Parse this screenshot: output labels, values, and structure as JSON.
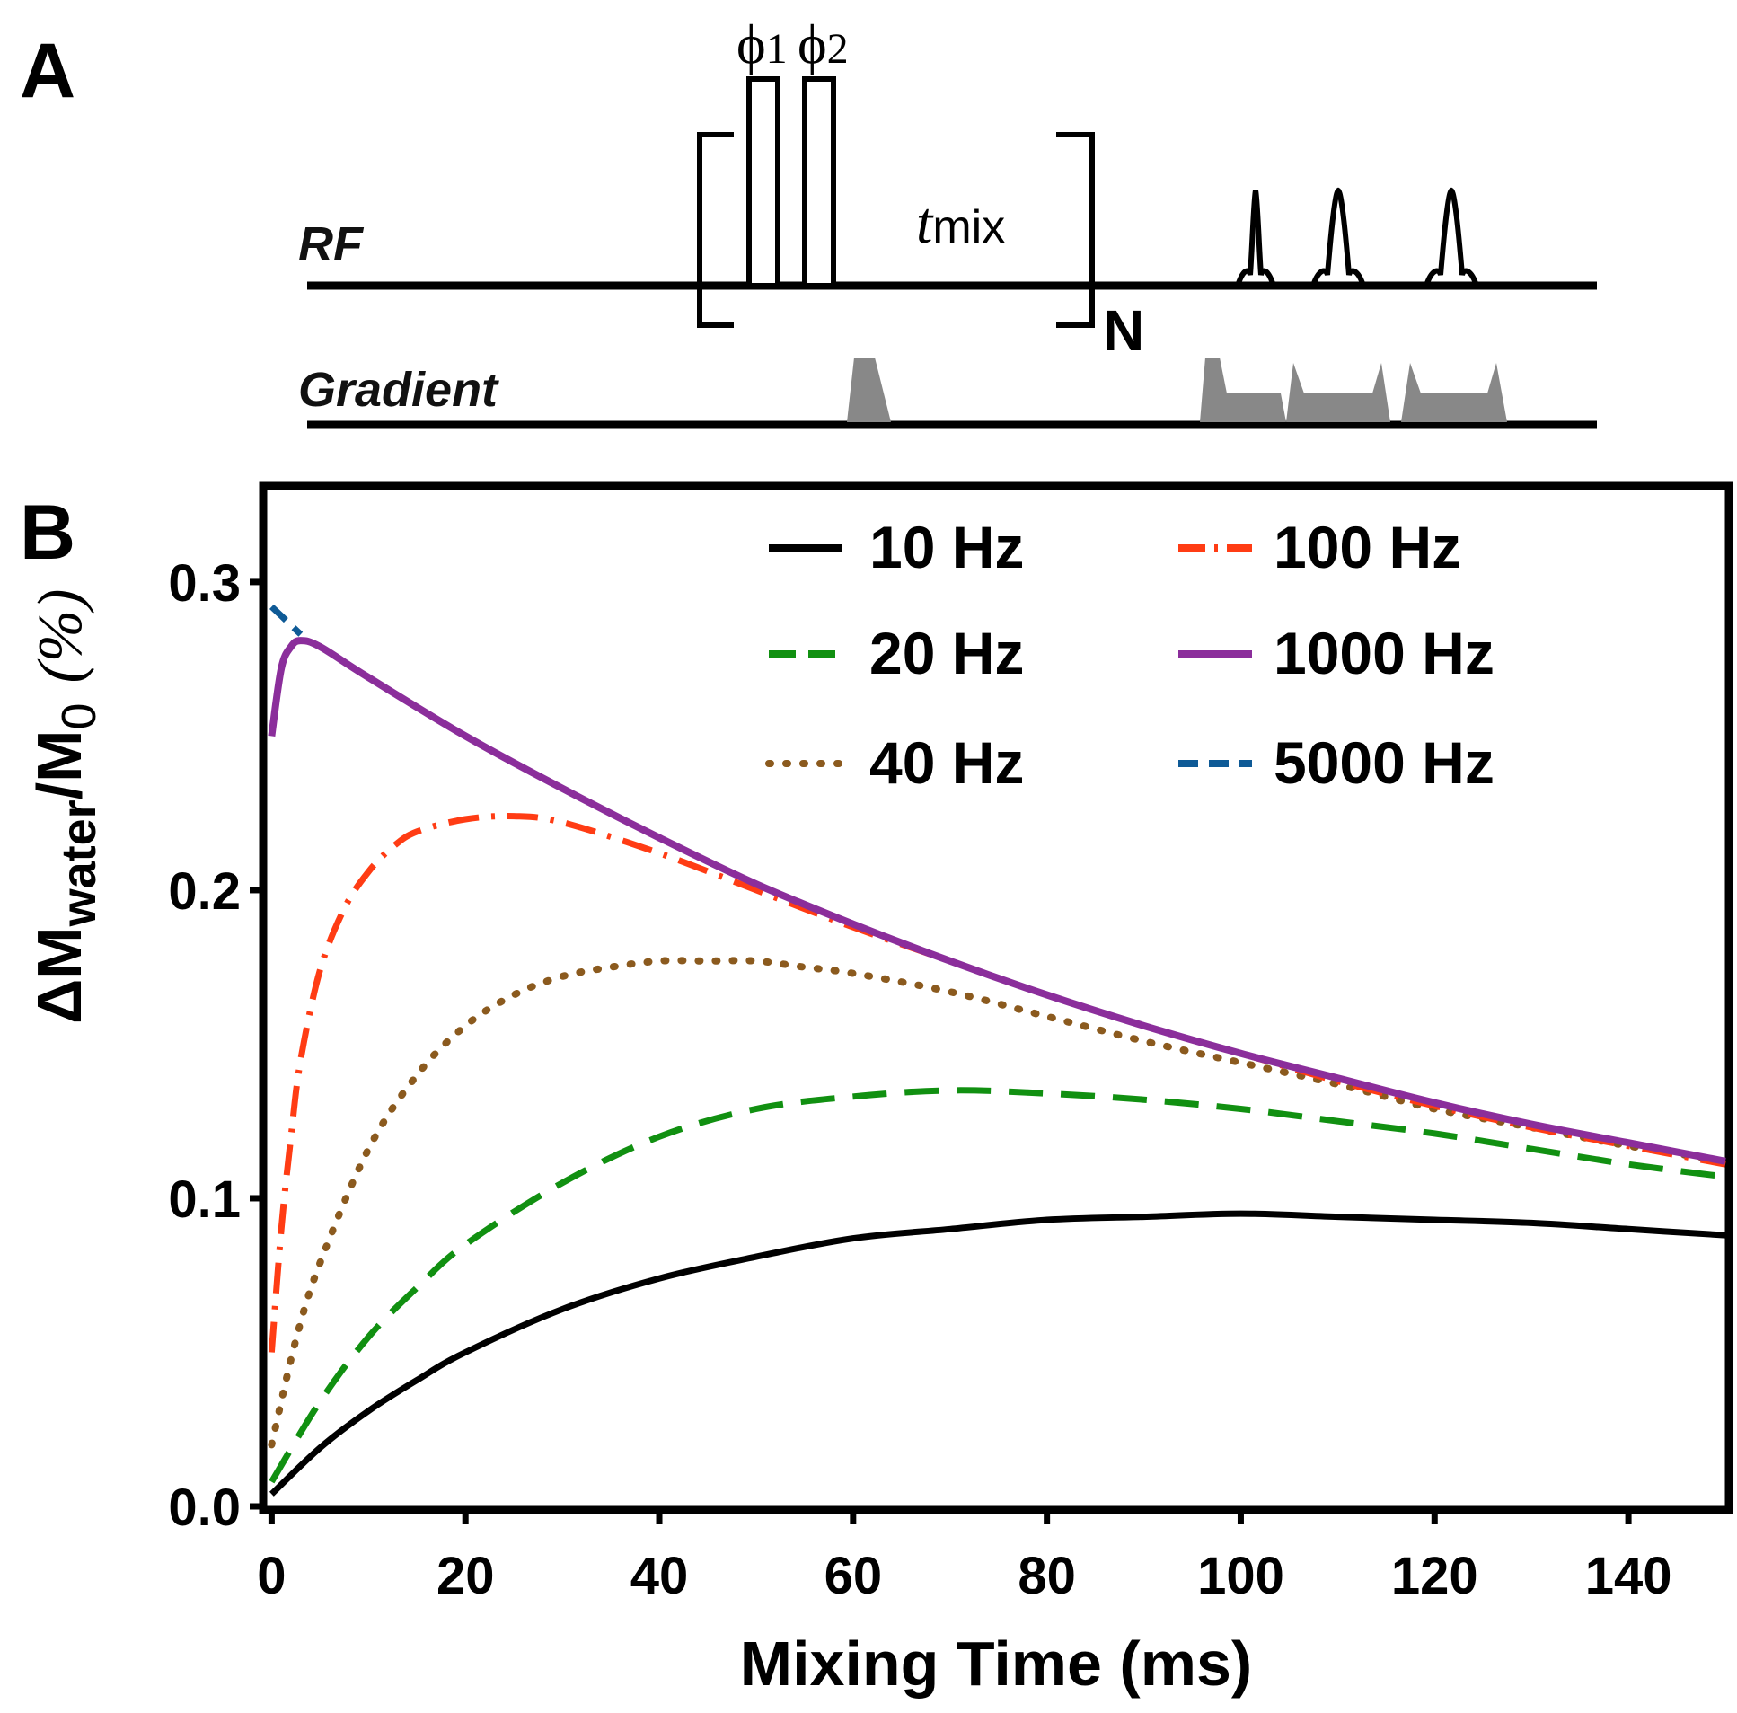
{
  "panel_a": {
    "label": "A",
    "rf_label": "RF",
    "gradient_label": "Gradient",
    "phase1_symbol": "ϕ",
    "phase1_sub": "1",
    "phase2_symbol": "ϕ",
    "phase2_sub": "2",
    "tmix_t": "t",
    "tmix_sub": "mix",
    "repeat_label": "N",
    "pulse_color": "#000000",
    "gradient_color": "#888888"
  },
  "panel_b": {
    "label": "B"
  },
  "chart_data": {
    "type": "line",
    "title": "",
    "xlabel": "Mixing Time (ms)",
    "ylabel_main": "ΔM",
    "ylabel_sub": "water",
    "ylabel_slash": "/M",
    "ylabel_sub0": "0",
    "ylabel_pct": "(%)",
    "xlim": [
      -0.5,
      150
    ],
    "ylim": [
      0.0,
      0.33
    ],
    "xticks": [
      0,
      20,
      40,
      60,
      80,
      100,
      120,
      140
    ],
    "yticks": [
      0.0,
      0.1,
      0.2,
      0.3
    ],
    "xtick_labels": [
      "0",
      "20",
      "40",
      "60",
      "80",
      "100",
      "120",
      "140"
    ],
    "ytick_labels": [
      "0.0",
      "0.1",
      "0.2",
      "0.3"
    ],
    "legend_position": "top-right",
    "grid": false,
    "series": [
      {
        "name": "10 Hz",
        "color": "#000000",
        "dash": "solid",
        "x": [
          0,
          5,
          10,
          15,
          20,
          30,
          40,
          50,
          60,
          70,
          80,
          90,
          100,
          110,
          120,
          130,
          140,
          150
        ],
        "y": [
          0.004,
          0.019,
          0.031,
          0.041,
          0.05,
          0.064,
          0.074,
          0.081,
          0.087,
          0.09,
          0.093,
          0.094,
          0.095,
          0.094,
          0.093,
          0.092,
          0.09,
          0.088
        ]
      },
      {
        "name": "20 Hz",
        "color": "#119011",
        "dash": "dashed",
        "x": [
          0,
          5,
          10,
          15,
          20,
          30,
          40,
          50,
          60,
          70,
          80,
          90,
          100,
          110,
          120,
          130,
          140,
          150
        ],
        "y": [
          0.008,
          0.034,
          0.055,
          0.071,
          0.085,
          0.105,
          0.12,
          0.129,
          0.133,
          0.135,
          0.134,
          0.132,
          0.129,
          0.125,
          0.121,
          0.116,
          0.111,
          0.107
        ]
      },
      {
        "name": "40 Hz",
        "color": "#8B5A1E",
        "dash": "dotted",
        "x": [
          0,
          2.5,
          5,
          10,
          15,
          20,
          25,
          30,
          35,
          40,
          45,
          50,
          55,
          60,
          70,
          80,
          90,
          100,
          110,
          120,
          130,
          140,
          150
        ],
        "y": [
          0.02,
          0.054,
          0.079,
          0.116,
          0.14,
          0.156,
          0.166,
          0.172,
          0.175,
          0.177,
          0.177,
          0.177,
          0.175,
          0.173,
          0.167,
          0.159,
          0.151,
          0.144,
          0.137,
          0.129,
          0.123,
          0.117,
          0.112
        ]
      },
      {
        "name": "100 Hz",
        "color": "#FF3C14",
        "dash": "dashdot",
        "x": [
          0,
          1,
          2,
          3,
          5,
          7.5,
          10,
          12.5,
          15,
          20,
          25,
          30,
          40,
          50,
          60,
          70,
          80,
          90,
          100,
          110,
          120,
          130,
          140,
          150
        ],
        "y": [
          0.05,
          0.09,
          0.12,
          0.145,
          0.174,
          0.194,
          0.206,
          0.214,
          0.219,
          0.223,
          0.224,
          0.222,
          0.212,
          0.2,
          0.188,
          0.177,
          0.166,
          0.156,
          0.147,
          0.138,
          0.13,
          0.123,
          0.117,
          0.111
        ]
      },
      {
        "name": "1000 Hz",
        "color": "#8B2E9B",
        "dash": "solid",
        "x": [
          0,
          1,
          2,
          3,
          5,
          10,
          20,
          30,
          40,
          50,
          60,
          70,
          80,
          90,
          100,
          110,
          120,
          130,
          140,
          150
        ],
        "y": [
          0.25,
          0.272,
          0.279,
          0.281,
          0.279,
          0.269,
          0.25,
          0.233,
          0.217,
          0.202,
          0.189,
          0.177,
          0.166,
          0.156,
          0.147,
          0.139,
          0.131,
          0.124,
          0.118,
          0.112
        ]
      },
      {
        "name": "5000 Hz",
        "color": "#0E5A96",
        "dash": "dashed-short",
        "x": [
          0,
          1,
          2,
          3
        ],
        "y": [
          0.292,
          0.289,
          0.286,
          0.283
        ]
      }
    ]
  }
}
